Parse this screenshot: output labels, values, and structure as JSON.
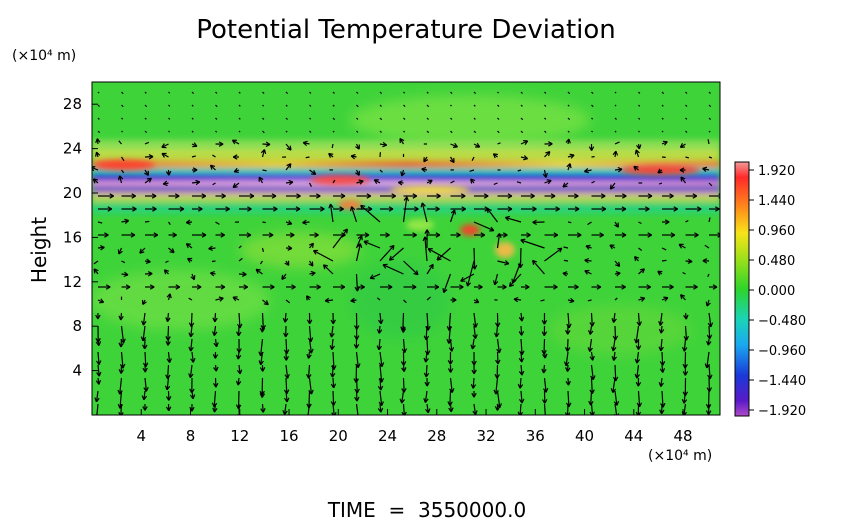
{
  "chart_data": {
    "type": "heatmap",
    "title": "Potential Temperature Deviation",
    "ylabel": "Height",
    "y_unit": "(×10⁴ m)",
    "x_unit": "(×10⁴ m)",
    "xlim": [
      0,
      51
    ],
    "ylim": [
      0,
      30
    ],
    "x_ticks": [
      4,
      8,
      12,
      16,
      20,
      24,
      28,
      32,
      36,
      40,
      44,
      48
    ],
    "y_ticks": [
      4,
      8,
      12,
      16,
      20,
      24,
      28
    ],
    "colorbar": {
      "ticks": [
        "1.920",
        "1.440",
        "0.960",
        "0.480",
        "0.000",
        "−0.480",
        "−0.960",
        "−1.440",
        "−1.920"
      ],
      "range": [
        -1.92,
        1.92
      ]
    },
    "overlay": "wind vectors",
    "footer": "TIME  =  3550000.0"
  }
}
